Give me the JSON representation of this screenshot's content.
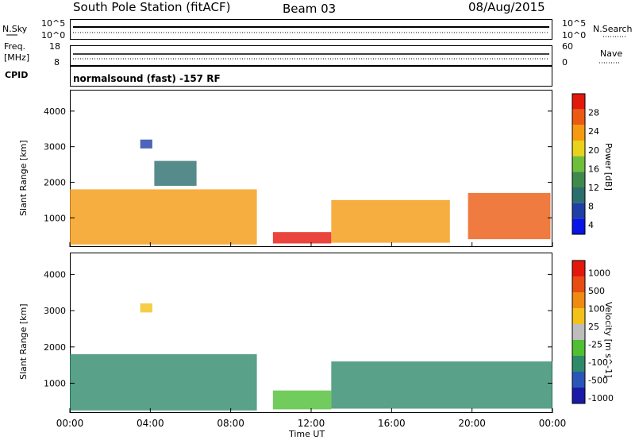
{
  "header": {
    "station": "South Pole Station (fitACF)",
    "beam": "Beam 03",
    "date": "08/Aug/2015"
  },
  "top_panels": {
    "nsky_label": "N.Sky",
    "nsearch_label": "N.Search",
    "left_ticks": [
      "10^5",
      "10^0"
    ],
    "right_ticks": [
      "10^5",
      "10^0"
    ],
    "freq_label": "Freq.",
    "freq_unit": "[MHz]",
    "freq_ticks": [
      "18",
      "8"
    ],
    "nave_label": "Nave",
    "nave_ticks": [
      "60",
      "0"
    ],
    "cpid_label": "CPID",
    "cpid_text": "normalsound (fast) -157 RF"
  },
  "colors": {
    "power_scale": [
      "#0a14e6",
      "#1f3fa6",
      "#2a6e6e",
      "#3f8a4a",
      "#6fbf3a",
      "#e8d21c",
      "#f59a10",
      "#ec5a12",
      "#e4170c"
    ],
    "velocity_scale": [
      "#1a1aa8",
      "#2a56b8",
      "#2f8a6a",
      "#4fbf34",
      "#bdbdbd",
      "#f2c21a",
      "#f08a10",
      "#e74c12",
      "#e4170c"
    ]
  },
  "chart_data": [
    {
      "type": "heatmap",
      "name": "power-panel",
      "xlabel": "Time UT",
      "ylabel": "Slant Range [km]",
      "xlim": [
        0,
        24
      ],
      "ylim": [
        180,
        4600
      ],
      "xticks": [
        0,
        4,
        8,
        12,
        16,
        20,
        24
      ],
      "xtick_labels": [
        "00:00",
        "04:00",
        "08:00",
        "12:00",
        "16:00",
        "20:00",
        "00:00"
      ],
      "yticks": [
        1000,
        2000,
        3000,
        4000
      ],
      "ytick_labels": [
        "1000",
        "2000",
        "3000",
        "4000"
      ],
      "colorbar_label": "Power [dB]",
      "colorbar_ticks": [
        "28",
        "24",
        "20",
        "16",
        "12",
        "8",
        "4"
      ],
      "regions": [
        {
          "t0": 0.0,
          "t1": 9.3,
          "r0": 250,
          "r1": 1800,
          "level": 6
        },
        {
          "t0": 3.5,
          "t1": 4.1,
          "r0": 2950,
          "r1": 3200,
          "level": 1
        },
        {
          "t0": 4.2,
          "t1": 6.3,
          "r0": 1900,
          "r1": 2600,
          "level": 2
        },
        {
          "t0": 10.1,
          "t1": 13.0,
          "r0": 280,
          "r1": 600,
          "level": 8
        },
        {
          "t0": 13.0,
          "t1": 18.9,
          "r0": 300,
          "r1": 1500,
          "level": 6
        },
        {
          "t0": 19.8,
          "t1": 23.9,
          "r0": 400,
          "r1": 1700,
          "level": 7
        }
      ]
    },
    {
      "type": "heatmap",
      "name": "velocity-panel",
      "xlabel": "Time UT",
      "ylabel": "Slant Range [km]",
      "xlim": [
        0,
        24
      ],
      "ylim": [
        180,
        4600
      ],
      "xticks": [
        0,
        4,
        8,
        12,
        16,
        20,
        24
      ],
      "xtick_labels": [
        "00:00",
        "04:00",
        "08:00",
        "12:00",
        "16:00",
        "20:00",
        "00:00"
      ],
      "yticks": [
        1000,
        2000,
        3000,
        4000
      ],
      "ytick_labels": [
        "1000",
        "2000",
        "3000",
        "4000"
      ],
      "colorbar_label": "Velocity [m s^-1]",
      "colorbar_ticks": [
        "1000",
        "500",
        "100",
        "25",
        "-25",
        "-100",
        "-500",
        "-1000"
      ],
      "regions": [
        {
          "t0": 0.0,
          "t1": 9.3,
          "r0": 250,
          "r1": 1800,
          "level": 2
        },
        {
          "t0": 3.5,
          "t1": 4.1,
          "r0": 2950,
          "r1": 3200,
          "level": 5
        },
        {
          "t0": 10.1,
          "t1": 13.0,
          "r0": 280,
          "r1": 800,
          "level": 3
        },
        {
          "t0": 13.0,
          "t1": 24.0,
          "r0": 300,
          "r1": 1600,
          "level": 2
        }
      ]
    }
  ]
}
